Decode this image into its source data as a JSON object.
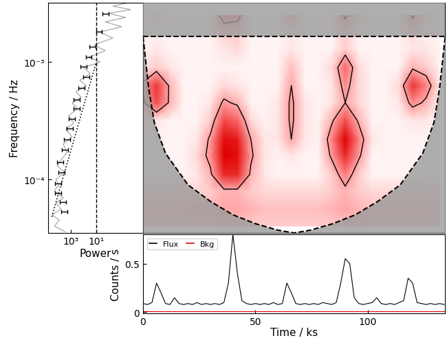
{
  "chart_data": [
    {
      "type": "line",
      "xlabel": "Power",
      "ylabel": "Frequency / Hz",
      "log": true,
      "xlim": [
        60000,
        0.0021
      ],
      "ylim": [
        3.5e-05,
        0.0032
      ],
      "xticks": [
        {
          "value": 1000,
          "label": "10³"
        },
        {
          "value": 10,
          "label": "10¹"
        }
      ],
      "yticks": [
        {
          "value": 0.0001,
          "label": "10⁻⁴"
        },
        {
          "value": 0.001,
          "label": "10⁻³"
        }
      ],
      "series": [
        {
          "type": "line",
          "color": "#a0a0a0",
          "line_style": "solid",
          "frequency": [
            3.6e-05,
            4e-05,
            4.5e-05,
            5e-05,
            5.6e-05,
            6.3e-05,
            7e-05,
            8e-05,
            9e-05,
            0.0001,
            0.000115,
            0.00013,
            0.00015,
            0.00017,
            0.0002,
            0.00023,
            0.00027,
            0.0003,
            0.00035,
            0.0004,
            0.00045,
            0.0005,
            0.00056,
            0.00063,
            0.0007,
            0.0008,
            0.0009,
            0.001,
            0.0011,
            0.00125,
            0.0014,
            0.0016,
            0.0018,
            0.002,
            0.0022,
            0.0024,
            0.0026,
            0.0028,
            0.003,
            0.0032
          ],
          "power": [
            3000,
            20000,
            8000,
            30000,
            6000,
            15000,
            4000,
            20000,
            9000,
            15000,
            3000,
            12000,
            5000,
            2000,
            4000,
            800,
            2500,
            600,
            1500,
            300,
            800,
            150,
            400,
            60,
            200,
            30,
            100,
            5,
            40,
            2,
            15,
            0.5,
            5,
            0.1,
            2,
            0.05,
            1,
            0.02,
            0.5,
            0.03
          ]
        },
        {
          "type": "errorbar",
          "color": "#000000",
          "marker": "none",
          "frequency": [
            0.00257,
            0.00183,
            0.00135,
            0.0011,
            0.00092,
            0.00075,
            0.0006,
            0.00048,
            0.0004,
            0.00033,
            0.00027,
            0.00022,
            0.00018,
            0.00014,
            0.000115,
            9.3e-05,
            7.7e-05,
            6.4e-05,
            5.3e-05
          ],
          "power": [
            2.2,
            6.9,
            24,
            45,
            120,
            73,
            174,
            420,
            420,
            1000,
            1450,
            2400,
            3500,
            8300,
            6400,
            12000,
            12000,
            5000,
            3900
          ],
          "errors": [
            1.1,
            3.4,
            12,
            22,
            60,
            36,
            87,
            210,
            210,
            500,
            720,
            1200,
            1750,
            4150,
            3200,
            6000,
            6000,
            2500,
            1950
          ]
        },
        {
          "type": "line",
          "color": "#000000",
          "line_style": "dotted",
          "frequency": [
            4.8e-05,
            0.001
          ],
          "power": [
            32000,
            10
          ]
        },
        {
          "type": "vline",
          "color": "#000000",
          "line_style": "dashed",
          "power": 10
        }
      ]
    },
    {
      "type": "heatmap",
      "tick_labels": false,
      "xlim": [
        0,
        134.5
      ],
      "ylim": [
        3.5e-05,
        0.0032
      ],
      "log": "y",
      "x": [
        0,
        6,
        12,
        18,
        24,
        30,
        36,
        42,
        48,
        54,
        60,
        66,
        72,
        78,
        84,
        90,
        96,
        102,
        108,
        114,
        120,
        126,
        132
      ],
      "y": [
        4e-05,
        5.6e-05,
        8e-05,
        0.00011,
        0.00016,
        0.00022,
        0.00032,
        0.00045,
        0.00063,
        0.0009,
        0.0013,
        0.0018,
        0.0025
      ],
      "value_range": [
        0,
        1
      ],
      "significance_level": 0.35,
      "cells": [
        [
          0.2,
          0.2,
          0.2,
          0.2,
          0.2,
          0.2,
          0.25,
          0.25,
          0.2,
          0.2,
          0.2,
          0.2,
          0.2,
          0.2,
          0.2,
          0.25,
          0.25,
          0.2,
          0.2,
          0.2,
          0.2,
          0.2,
          0.2
        ],
        [
          0.25,
          0.25,
          0.25,
          0.25,
          0.3,
          0.3,
          0.35,
          0.35,
          0.3,
          0.25,
          0.25,
          0.25,
          0.25,
          0.25,
          0.3,
          0.35,
          0.3,
          0.25,
          0.25,
          0.25,
          0.25,
          0.25,
          0.25
        ],
        [
          0.15,
          0.15,
          0.15,
          0.15,
          0.15,
          0.2,
          0.3,
          0.3,
          0.2,
          0.15,
          0.15,
          0.15,
          0.15,
          0.15,
          0.2,
          0.3,
          0.2,
          0.15,
          0.15,
          0.15,
          0.15,
          0.15,
          0.15
        ],
        [
          0.05,
          0.05,
          0.05,
          0.05,
          0.1,
          0.3,
          0.85,
          0.85,
          0.3,
          0.1,
          0.05,
          0.05,
          0.05,
          0.05,
          0.2,
          0.5,
          0.2,
          0.05,
          0.05,
          0.05,
          0.05,
          0.05,
          0.05
        ],
        [
          0.05,
          0.05,
          0.05,
          0.05,
          0.15,
          0.45,
          1.0,
          0.95,
          0.4,
          0.1,
          0.05,
          0.1,
          0.05,
          0.05,
          0.4,
          0.85,
          0.4,
          0.05,
          0.05,
          0.05,
          0.05,
          0.05,
          0.05
        ],
        [
          0.05,
          0.05,
          0.05,
          0.05,
          0.1,
          0.4,
          0.95,
          0.9,
          0.35,
          0.1,
          0.1,
          0.35,
          0.1,
          0.05,
          0.5,
          1.0,
          0.5,
          0.1,
          0.05,
          0.05,
          0.05,
          0.05,
          0.05
        ],
        [
          0.05,
          0.1,
          0.05,
          0.05,
          0.05,
          0.2,
          0.7,
          0.6,
          0.15,
          0.05,
          0.1,
          0.4,
          0.1,
          0.05,
          0.3,
          0.7,
          0.3,
          0.05,
          0.05,
          0.05,
          0.1,
          0.1,
          0.05
        ],
        [
          0.3,
          0.7,
          0.3,
          0.05,
          0.05,
          0.1,
          0.4,
          0.3,
          0.05,
          0.05,
          0.1,
          0.4,
          0.1,
          0.05,
          0.1,
          0.35,
          0.15,
          0.05,
          0.05,
          0.1,
          0.45,
          0.3,
          0.05
        ],
        [
          0.4,
          0.8,
          0.3,
          0.05,
          0.05,
          0.05,
          0.15,
          0.1,
          0.05,
          0.05,
          0.05,
          0.35,
          0.05,
          0.05,
          0.1,
          0.45,
          0.15,
          0.05,
          0.05,
          0.15,
          0.8,
          0.5,
          0.1
        ],
        [
          0.1,
          0.2,
          0.1,
          0.05,
          0.05,
          0.05,
          0.05,
          0.05,
          0.05,
          0.05,
          0.05,
          0.25,
          0.05,
          0.05,
          0.15,
          0.6,
          0.15,
          0.05,
          0.05,
          0.05,
          0.3,
          0.2,
          0.05
        ],
        [
          0.05,
          0.1,
          0.05,
          0.05,
          0.05,
          0.05,
          0.1,
          0.15,
          0.05,
          0.05,
          0.05,
          0.1,
          0.05,
          0.05,
          0.05,
          0.2,
          0.05,
          0.05,
          0.05,
          0.05,
          0.1,
          0.1,
          0.05
        ],
        [
          0.05,
          0.05,
          0.05,
          0.05,
          0.05,
          0.05,
          0.2,
          0.2,
          0.05,
          0.05,
          0.05,
          0.1,
          0.05,
          0.05,
          0.05,
          0.2,
          0.05,
          0.05,
          0.05,
          0.05,
          0.15,
          0.05,
          0.05
        ],
        [
          0.05,
          0.1,
          0.05,
          0.05,
          0.05,
          0.05,
          0.5,
          0.45,
          0.05,
          0.05,
          0.05,
          0.3,
          0.05,
          0.05,
          0.05,
          0.4,
          0.1,
          0.05,
          0.05,
          0.05,
          0.4,
          0.1,
          0.05
        ]
      ],
      "coi_time": [
        0,
        2.5,
        5,
        10,
        20,
        30,
        40,
        50,
        60,
        67.25,
        74.5,
        84.5,
        94.5,
        104.5,
        114.5,
        124.5,
        129.5,
        132,
        134.5
      ],
      "coi_frequency": [
        0.00165,
        0.0006,
        0.000306,
        0.000167,
        9e-05,
        6.5e-05,
        5e-05,
        4.2e-05,
        3.7e-05,
        3.5e-05,
        3.7e-05,
        4.2e-05,
        5e-05,
        6.5e-05,
        9e-05,
        0.000167,
        0.000306,
        0.0006,
        0.00165
      ],
      "nyquist": 0.00165
    },
    {
      "type": "line",
      "xlabel": "Time / ks",
      "ylabel": "Counts / s",
      "xlim": [
        0,
        134.5
      ],
      "ylim": [
        -0.01,
        0.8
      ],
      "xticks": [
        0,
        50,
        100
      ],
      "yticks": [
        0,
        0.5
      ],
      "legend": "upper left",
      "series": [
        {
          "name": "Flux",
          "color": "#000000",
          "x": [
            0,
            2,
            4,
            6,
            8,
            10,
            12,
            14,
            16,
            18,
            20,
            22,
            24,
            26,
            28,
            30,
            32,
            34,
            36,
            38,
            40,
            42,
            44,
            46,
            48,
            50,
            52,
            54,
            56,
            58,
            60,
            62,
            64,
            66,
            68,
            70,
            72,
            74,
            76,
            78,
            80,
            82,
            84,
            86,
            88,
            90,
            92,
            94,
            96,
            98,
            100,
            102,
            104,
            106,
            108,
            110,
            112,
            114,
            116,
            118,
            120,
            122,
            124,
            126,
            128,
            130,
            132,
            134
          ],
          "values": [
            0.09,
            0.08,
            0.1,
            0.3,
            0.2,
            0.09,
            0.08,
            0.15,
            0.09,
            0.08,
            0.09,
            0.08,
            0.1,
            0.08,
            0.09,
            0.08,
            0.09,
            0.08,
            0.1,
            0.3,
            0.8,
            0.4,
            0.12,
            0.09,
            0.08,
            0.09,
            0.08,
            0.09,
            0.08,
            0.1,
            0.08,
            0.09,
            0.3,
            0.2,
            0.09,
            0.08,
            0.09,
            0.08,
            0.09,
            0.08,
            0.1,
            0.09,
            0.08,
            0.1,
            0.3,
            0.55,
            0.5,
            0.15,
            0.09,
            0.08,
            0.09,
            0.1,
            0.15,
            0.09,
            0.08,
            0.09,
            0.08,
            0.1,
            0.12,
            0.35,
            0.3,
            0.1,
            0.09,
            0.08,
            0.09,
            0.08,
            0.09,
            0.08
          ]
        },
        {
          "name": "Bkg",
          "color": "#e00000",
          "x": [
            0,
            134
          ],
          "values": [
            0.01,
            0.01
          ]
        }
      ]
    }
  ]
}
